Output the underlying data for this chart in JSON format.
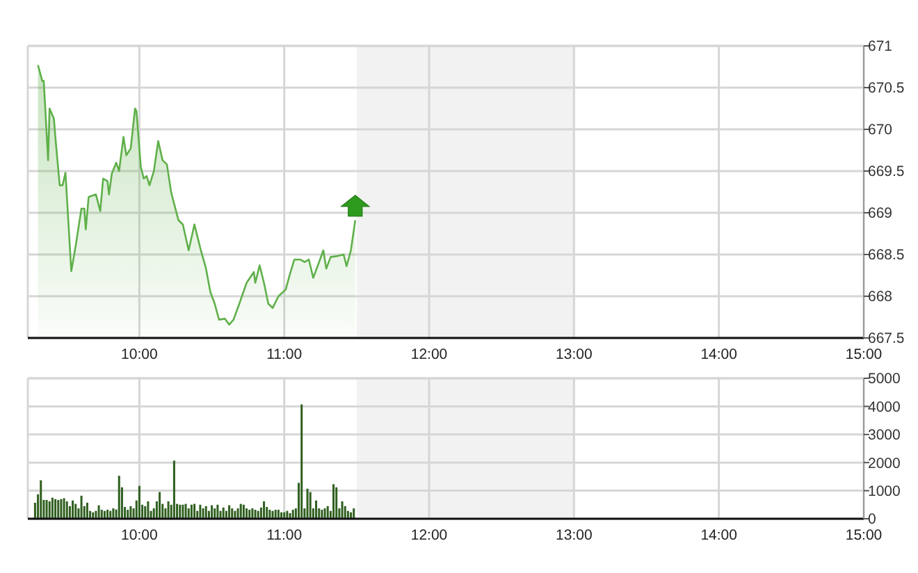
{
  "chart_data": [
    {
      "type": "area",
      "x": [
        9.3,
        9.33,
        9.34,
        9.37,
        9.38,
        9.41,
        9.42,
        9.45,
        9.47,
        9.49,
        9.53,
        9.56,
        9.6,
        9.62,
        9.63,
        9.65,
        9.7,
        9.73,
        9.75,
        9.78,
        9.79,
        9.81,
        9.84,
        9.86,
        9.89,
        9.91,
        9.94,
        9.97,
        9.98,
        10.01,
        10.03,
        10.05,
        10.07,
        10.1,
        10.13,
        10.16,
        10.19,
        10.22,
        10.27,
        10.3,
        10.34,
        10.38,
        10.42,
        10.46,
        10.49,
        10.52,
        10.55,
        10.59,
        10.62,
        10.65,
        10.69,
        10.74,
        10.79,
        10.8,
        10.83,
        10.86,
        10.89,
        10.92,
        10.96,
        11.01,
        11.04,
        11.07,
        11.11,
        11.14,
        11.17,
        11.2,
        11.23,
        11.27,
        11.29,
        11.32,
        11.36,
        11.41,
        11.43,
        11.46,
        11.49
      ],
      "series": [
        {
          "color": "#5fb04a",
          "values": [
            670.77,
            670.58,
            670.58,
            669.63,
            670.25,
            670.13,
            669.91,
            669.33,
            669.33,
            669.48,
            668.3,
            668.6,
            669.05,
            669.05,
            668.8,
            669.19,
            669.22,
            669.02,
            669.41,
            669.38,
            669.22,
            669.47,
            669.6,
            669.5,
            669.91,
            669.69,
            669.77,
            670.25,
            670.22,
            669.55,
            669.41,
            669.44,
            669.33,
            669.5,
            669.86,
            669.63,
            669.58,
            669.24,
            668.91,
            668.86,
            668.55,
            668.86,
            668.58,
            668.33,
            668.05,
            667.91,
            667.72,
            667.73,
            667.66,
            667.72,
            667.91,
            668.16,
            668.29,
            668.16,
            668.37,
            668.16,
            667.91,
            667.86,
            668.0,
            668.08,
            668.27,
            668.44,
            668.44,
            668.41,
            668.44,
            668.22,
            668.36,
            668.55,
            668.33,
            668.47,
            668.48,
            668.5,
            668.36,
            668.55,
            668.91
          ]
        }
      ],
      "xlim": [
        9.23,
        15
      ],
      "xticks": [
        {
          "value": 10,
          "label": "10:00"
        },
        {
          "value": 11,
          "label": "11:00"
        },
        {
          "value": 12,
          "label": "12:00"
        },
        {
          "value": 13,
          "label": "13:00"
        },
        {
          "value": 14,
          "label": "14:00"
        },
        {
          "value": 15,
          "label": "15:00"
        }
      ],
      "ylim": [
        667.5,
        671
      ],
      "yticks": [
        667.5,
        668,
        668.5,
        669,
        669.5,
        670,
        670.5,
        671
      ],
      "grid": true,
      "bands": [
        {
          "axis": "x",
          "from": 11.5,
          "to": 13,
          "color": "#f2f2f2"
        }
      ]
    },
    {
      "type": "bar",
      "x": [
        9.28,
        9.3,
        9.32,
        9.34,
        9.36,
        9.38,
        9.4,
        9.42,
        9.44,
        9.46,
        9.48,
        9.5,
        9.52,
        9.54,
        9.56,
        9.58,
        9.6,
        9.62,
        9.64,
        9.66,
        9.68,
        9.7,
        9.72,
        9.74,
        9.76,
        9.78,
        9.8,
        9.82,
        9.84,
        9.86,
        9.88,
        9.9,
        9.92,
        9.94,
        9.96,
        9.98,
        10.0,
        10.02,
        10.04,
        10.06,
        10.08,
        10.1,
        10.12,
        10.14,
        10.16,
        10.18,
        10.2,
        10.22,
        10.24,
        10.26,
        10.28,
        10.3,
        10.32,
        10.34,
        10.36,
        10.38,
        10.4,
        10.42,
        10.44,
        10.46,
        10.48,
        10.5,
        10.52,
        10.54,
        10.56,
        10.58,
        10.6,
        10.62,
        10.64,
        10.66,
        10.68,
        10.7,
        10.72,
        10.74,
        10.76,
        10.78,
        10.8,
        10.82,
        10.84,
        10.86,
        10.88,
        10.9,
        10.92,
        10.94,
        10.96,
        10.98,
        11.0,
        11.02,
        11.04,
        11.06,
        11.08,
        11.1,
        11.12,
        11.14,
        11.16,
        11.18,
        11.2,
        11.22,
        11.24,
        11.26,
        11.28,
        11.3,
        11.32,
        11.34,
        11.36,
        11.38,
        11.4,
        11.42,
        11.44,
        11.46,
        11.48
      ],
      "series": [
        {
          "color": "#2f5f1f",
          "values": [
            570,
            870,
            1370,
            670,
            670,
            620,
            750,
            700,
            670,
            700,
            730,
            620,
            450,
            650,
            530,
            370,
            820,
            450,
            570,
            280,
            230,
            280,
            480,
            320,
            280,
            320,
            280,
            370,
            330,
            1530,
            1120,
            420,
            320,
            450,
            370,
            650,
            1170,
            500,
            450,
            620,
            280,
            370,
            620,
            950,
            530,
            370,
            620,
            500,
            2070,
            530,
            500,
            500,
            530,
            370,
            500,
            530,
            280,
            500,
            370,
            450,
            280,
            480,
            370,
            500,
            280,
            400,
            280,
            480,
            370,
            280,
            370,
            530,
            500,
            370,
            320,
            370,
            320,
            280,
            400,
            620,
            420,
            320,
            280,
            320,
            320,
            230,
            230,
            280,
            200,
            320,
            370,
            1280,
            4070,
            370,
            1070,
            950,
            370,
            650,
            370,
            320,
            370,
            450,
            280,
            1230,
            1120,
            370,
            620,
            450,
            280,
            230,
            370
          ]
        }
      ],
      "xlim": [
        9.23,
        15
      ],
      "xticks": [
        {
          "value": 10,
          "label": "10:00"
        },
        {
          "value": 11,
          "label": "11:00"
        },
        {
          "value": 12,
          "label": "12:00"
        },
        {
          "value": 13,
          "label": "13:00"
        },
        {
          "value": 14,
          "label": "14:00"
        },
        {
          "value": 15,
          "label": "15:00"
        }
      ],
      "ylim": [
        0,
        5000
      ],
      "yticks": [
        0,
        1000,
        2000,
        3000,
        4000,
        5000
      ],
      "grid": true,
      "bands": [
        {
          "axis": "x",
          "from": 11.5,
          "to": 13,
          "color": "#f2f2f2"
        }
      ]
    }
  ]
}
